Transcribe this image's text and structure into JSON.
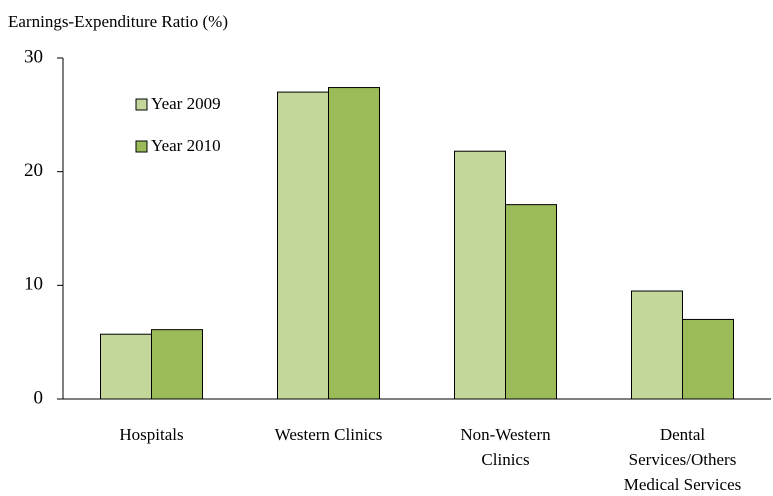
{
  "chart_data": {
    "type": "bar",
    "y_label": "Earnings-Expenditure Ratio (%)",
    "categories": [
      [
        "Hospitals"
      ],
      [
        "Western Clinics"
      ],
      [
        "Non-Western",
        "Clinics"
      ],
      [
        "Dental",
        "Services/Others",
        "Medical Services"
      ]
    ],
    "series": [
      {
        "name": "Year 2009",
        "color": "#c4d79b",
        "values": [
          5.7,
          27.0,
          21.8,
          9.5
        ]
      },
      {
        "name": "Year 2010",
        "color": "#9bbb59",
        "values": [
          6.1,
          27.4,
          17.1,
          7.0
        ]
      }
    ],
    "ylim": [
      0,
      30
    ],
    "yticks": [
      0,
      10,
      20,
      30
    ],
    "grid": false,
    "legend": "top-left"
  }
}
